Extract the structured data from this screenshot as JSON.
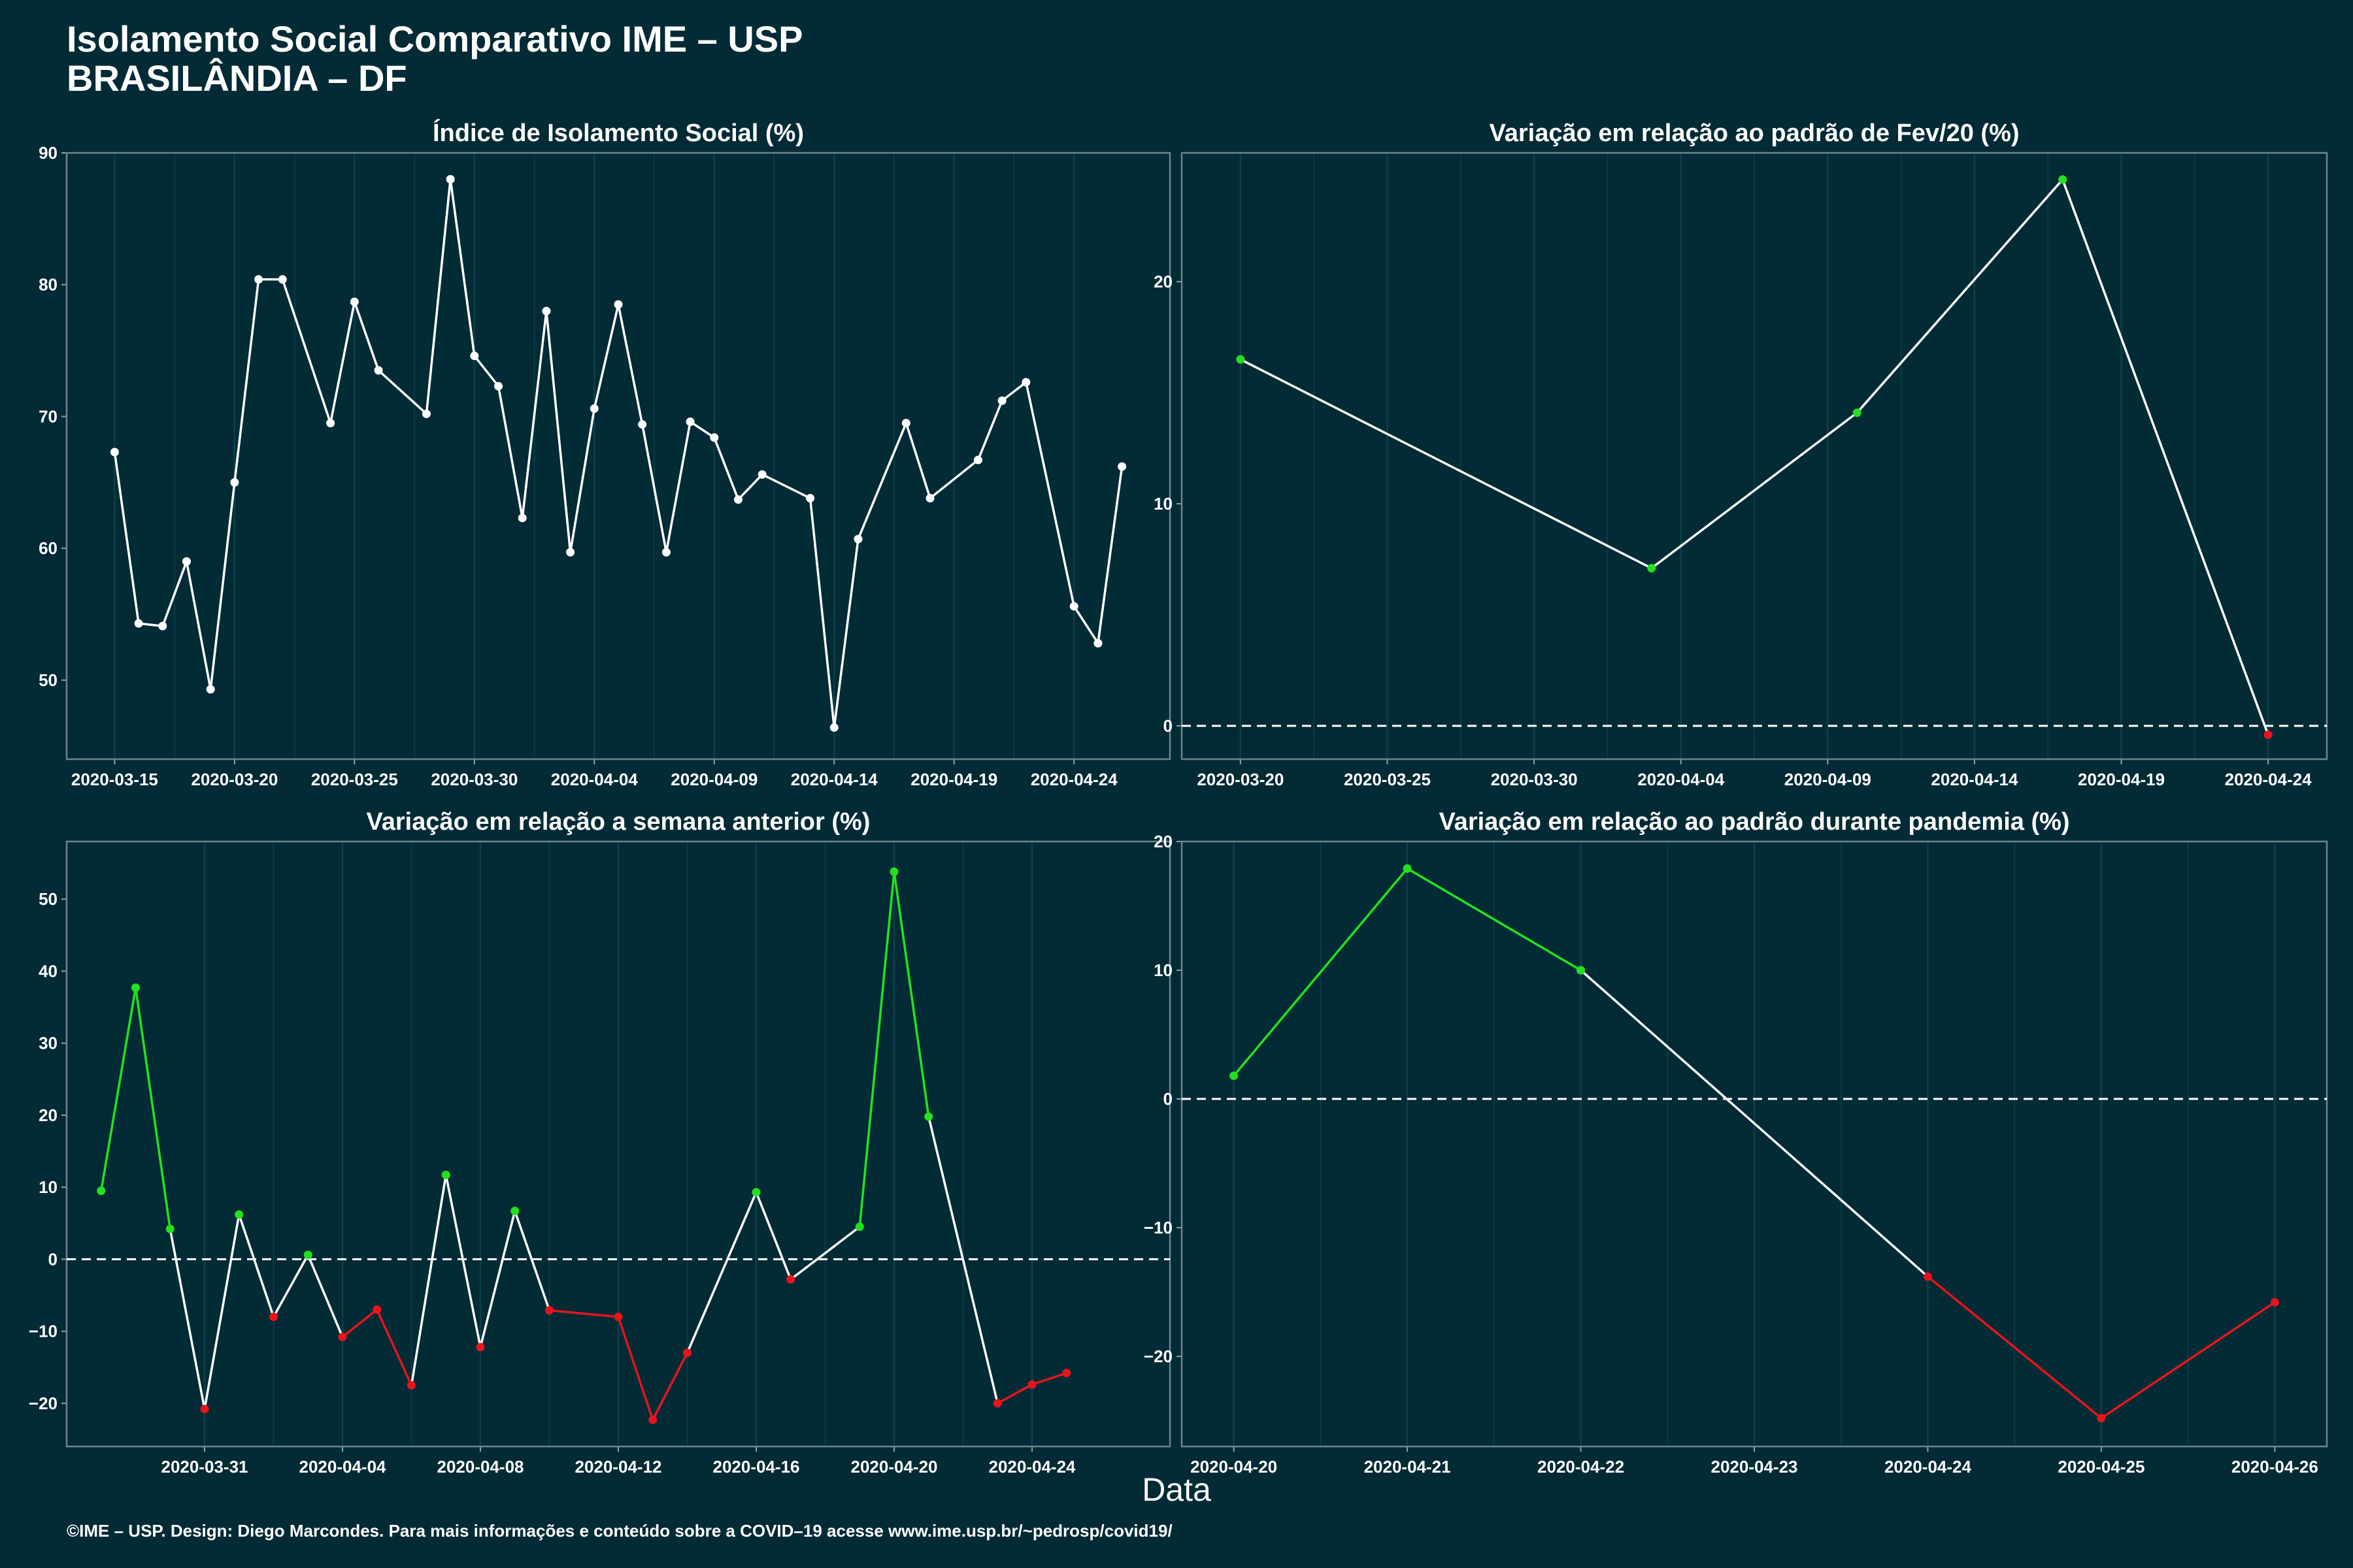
{
  "header": {
    "title": "Isolamento Social Comparativo IME – USP",
    "subtitle": "BRASILÂNDIA – DF"
  },
  "footer": {
    "x_label": "Data",
    "credit": "©IME – USP. Design: Diego Marcondes. Para mais informações e conteúdo sobre a COVID–19 acesse www.ime.usp.br/~pedrosp/covid19/"
  },
  "colors": {
    "background": "#022b36",
    "line_neutral": "#ffffff",
    "up": "#22e21f",
    "down": "#e8141b",
    "grid": "#0e3f4a"
  },
  "chart_data": [
    {
      "id": "indice",
      "type": "line",
      "title": "Índice de Isolamento Social (%)",
      "xlim": [
        "2020-03-13",
        "2020-04-28"
      ],
      "ylim": [
        44,
        90
      ],
      "yticks": [
        50,
        60,
        70,
        80,
        90
      ],
      "xticks": [
        "2020-03-15",
        "2020-03-20",
        "2020-03-25",
        "2020-03-30",
        "2020-04-04",
        "2020-04-09",
        "2020-04-14",
        "2020-04-19",
        "2020-04-24"
      ],
      "zero_line": false,
      "color_mode": "neutral",
      "points": [
        [
          "2020-03-15",
          67.3
        ],
        [
          "2020-03-16",
          54.3
        ],
        [
          "2020-03-17",
          54.1
        ],
        [
          "2020-03-18",
          59.0
        ],
        [
          "2020-03-19",
          49.3
        ],
        [
          "2020-03-20",
          65.0
        ],
        [
          "2020-03-21",
          80.4
        ],
        [
          "2020-03-22",
          80.4
        ],
        [
          "2020-03-24",
          69.5
        ],
        [
          "2020-03-25",
          78.7
        ],
        [
          "2020-03-26",
          73.5
        ],
        [
          "2020-03-28",
          70.2
        ],
        [
          "2020-03-29",
          88.0
        ],
        [
          "2020-03-30",
          74.6
        ],
        [
          "2020-03-31",
          72.3
        ],
        [
          "2020-04-01",
          62.3
        ],
        [
          "2020-04-02",
          78.0
        ],
        [
          "2020-04-03",
          59.7
        ],
        [
          "2020-04-04",
          70.6
        ],
        [
          "2020-04-05",
          78.5
        ],
        [
          "2020-04-06",
          69.4
        ],
        [
          "2020-04-07",
          59.7
        ],
        [
          "2020-04-08",
          69.6
        ],
        [
          "2020-04-09",
          68.4
        ],
        [
          "2020-04-10",
          63.7
        ],
        [
          "2020-04-11",
          65.6
        ],
        [
          "2020-04-13",
          63.8
        ],
        [
          "2020-04-14",
          46.4
        ],
        [
          "2020-04-15",
          60.7
        ],
        [
          "2020-04-17",
          69.5
        ],
        [
          "2020-04-18",
          63.8
        ],
        [
          "2020-04-20",
          66.7
        ],
        [
          "2020-04-21",
          71.2
        ],
        [
          "2020-04-22",
          72.6
        ],
        [
          "2020-04-24",
          55.6
        ],
        [
          "2020-04-25",
          52.8
        ],
        [
          "2020-04-26",
          66.2
        ]
      ]
    },
    {
      "id": "fev",
      "type": "line",
      "title": "Variação em relação ao padrão de Fev/20 (%)",
      "xlim": [
        "2020-03-18",
        "2020-04-26"
      ],
      "ylim": [
        -1.5,
        25.8
      ],
      "yticks": [
        0,
        10,
        20
      ],
      "xticks": [
        "2020-03-20",
        "2020-03-25",
        "2020-03-30",
        "2020-04-04",
        "2020-04-09",
        "2020-04-14",
        "2020-04-19",
        "2020-04-24"
      ],
      "zero_line": true,
      "color_mode": "points",
      "points": [
        [
          "2020-03-20",
          16.5
        ],
        [
          "2020-04-03",
          7.1
        ],
        [
          "2020-04-10",
          14.1
        ],
        [
          "2020-04-17",
          24.6
        ],
        [
          "2020-04-24",
          -0.4
        ]
      ]
    },
    {
      "id": "semana",
      "type": "line",
      "title": "Variação em relação a semana anterior (%)",
      "xlim": [
        "2020-03-27",
        "2020-04-28"
      ],
      "ylim": [
        -26,
        58
      ],
      "yticks": [
        -20,
        -10,
        0,
        10,
        20,
        30,
        40,
        50
      ],
      "xticks": [
        "2020-03-31",
        "2020-04-04",
        "2020-04-08",
        "2020-04-12",
        "2020-04-16",
        "2020-04-20",
        "2020-04-24"
      ],
      "zero_line": true,
      "color_mode": "segments",
      "points": [
        [
          "2020-03-28",
          9.5
        ],
        [
          "2020-03-29",
          37.7
        ],
        [
          "2020-03-30",
          4.2
        ],
        [
          "2020-03-31",
          -20.8
        ],
        [
          "2020-04-01",
          6.2
        ],
        [
          "2020-04-02",
          -8.0
        ],
        [
          "2020-04-03",
          0.6
        ],
        [
          "2020-04-04",
          -10.8
        ],
        [
          "2020-04-05",
          -7.0
        ],
        [
          "2020-04-06",
          -17.5
        ],
        [
          "2020-04-07",
          11.7
        ],
        [
          "2020-04-08",
          -12.2
        ],
        [
          "2020-04-09",
          6.7
        ],
        [
          "2020-04-10",
          -7.1
        ],
        [
          "2020-04-12",
          -8.0
        ],
        [
          "2020-04-13",
          -22.3
        ],
        [
          "2020-04-14",
          -13.0
        ],
        [
          "2020-04-16",
          9.3
        ],
        [
          "2020-04-17",
          -2.8
        ],
        [
          "2020-04-19",
          4.5
        ],
        [
          "2020-04-20",
          53.8
        ],
        [
          "2020-04-21",
          19.8
        ],
        [
          "2020-04-23",
          -20.0
        ],
        [
          "2020-04-24",
          -17.4
        ],
        [
          "2020-04-25",
          -15.8
        ]
      ]
    },
    {
      "id": "pandemia",
      "type": "line",
      "title": "Variação em relação ao padrão durante pandemia (%)",
      "xlim": [
        "2020-04-20",
        "2020-04-26"
      ],
      "xpad": 0.3,
      "ylim": [
        -27,
        20
      ],
      "yticks": [
        -20,
        -10,
        0,
        10,
        20
      ],
      "xticks": [
        "2020-04-20",
        "2020-04-21",
        "2020-04-22",
        "2020-04-23",
        "2020-04-24",
        "2020-04-25",
        "2020-04-26"
      ],
      "zero_line": true,
      "color_mode": "segments",
      "points": [
        [
          "2020-04-20",
          1.8
        ],
        [
          "2020-04-21",
          17.9
        ],
        [
          "2020-04-22",
          10.0
        ],
        [
          "2020-04-24",
          -13.8
        ],
        [
          "2020-04-25",
          -24.8
        ],
        [
          "2020-04-26",
          -15.8
        ]
      ]
    }
  ]
}
